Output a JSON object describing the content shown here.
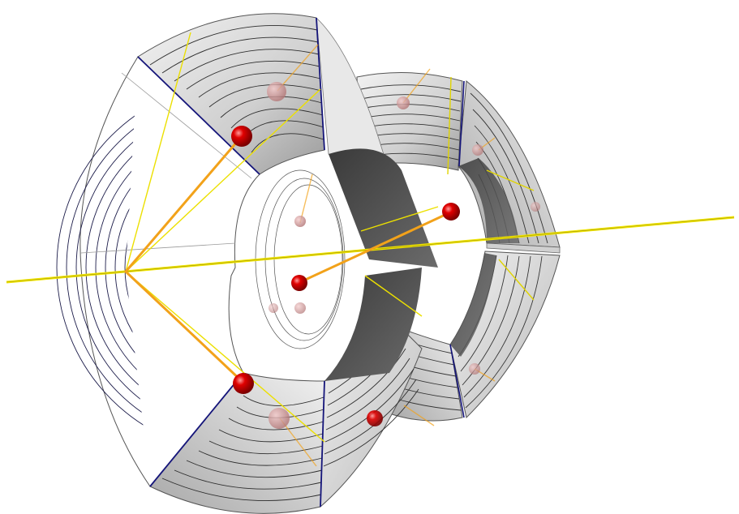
{
  "scene": {
    "kind": "3d-render",
    "background": "#ffffff",
    "colors": {
      "shell_light": "#e4e4e4",
      "shell_mid": "#c4c4c4",
      "shell_dark": "#8f8f8f",
      "inner_face_dark": "#4a4a4a",
      "ring_line": "#2b2b2b",
      "edge_line": "#1a1a6e",
      "axis": "#f2e600",
      "connector": "#f2a21a",
      "node": "#dd0000",
      "node_faded": "#c98a8a"
    },
    "components": [
      {
        "id": "beam-axis",
        "type": "line"
      },
      {
        "id": "large-segmented-shell",
        "segments": 4,
        "type": "cylindrical-shell"
      },
      {
        "id": "small-segmented-shell",
        "segments": 4,
        "type": "cylindrical-shell"
      },
      {
        "id": "center-node",
        "type": "sphere"
      }
    ],
    "nodes": {
      "large_shell": 4,
      "small_shell": 4,
      "center": 1
    }
  }
}
